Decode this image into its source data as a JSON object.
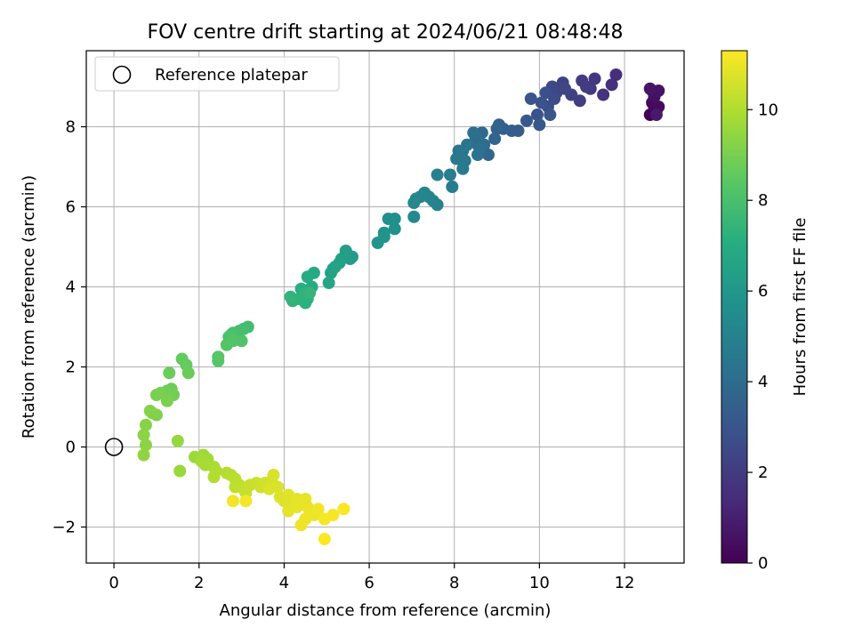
{
  "chart_data": {
    "type": "scatter",
    "title": "FOV centre drift starting at 2024/06/21 08:48:48",
    "xlabel": "Angular distance from reference (arcmin)",
    "ylabel": "Rotation from reference (arcmin)",
    "xlim": [
      -0.65,
      13.4
    ],
    "ylim": [
      -2.9,
      9.9
    ],
    "xticks": [
      0,
      2,
      4,
      6,
      8,
      10,
      12
    ],
    "yticks": [
      -2,
      0,
      2,
      4,
      6,
      8
    ],
    "xtick_labels": [
      "0",
      "2",
      "4",
      "6",
      "8",
      "10",
      "12"
    ],
    "ytick_labels": [
      "−2",
      "0",
      "2",
      "4",
      "6",
      "8"
    ],
    "grid": true,
    "legend": {
      "position": "upper-left",
      "entries": [
        {
          "label": "Reference platepar",
          "marker": "open-circle"
        }
      ]
    },
    "reference_point": {
      "x": 0,
      "y": 0
    },
    "colorbar": {
      "label": "Hours from first FF file",
      "colormap": "viridis",
      "range": [
        0,
        11.3
      ],
      "ticks": [
        0,
        2,
        4,
        6,
        8,
        10
      ],
      "tick_labels": [
        "0",
        "2",
        "4",
        "6",
        "8",
        "10"
      ]
    },
    "points": [
      {
        "x": 12.6,
        "y": 8.3,
        "h": 0.0
      },
      {
        "x": 12.75,
        "y": 8.4,
        "h": 0.1
      },
      {
        "x": 12.7,
        "y": 8.5,
        "h": 0.2
      },
      {
        "x": 12.65,
        "y": 8.6,
        "h": 0.3
      },
      {
        "x": 12.8,
        "y": 8.5,
        "h": 0.35
      },
      {
        "x": 12.7,
        "y": 8.75,
        "h": 0.45
      },
      {
        "x": 12.65,
        "y": 8.9,
        "h": 0.55
      },
      {
        "x": 12.8,
        "y": 8.9,
        "h": 0.6
      },
      {
        "x": 12.6,
        "y": 8.95,
        "h": 0.7
      },
      {
        "x": 12.75,
        "y": 8.3,
        "h": 0.8
      },
      {
        "x": 11.8,
        "y": 9.3,
        "h": 1.5
      },
      {
        "x": 11.7,
        "y": 9.05,
        "h": 1.6
      },
      {
        "x": 11.5,
        "y": 8.8,
        "h": 1.7
      },
      {
        "x": 11.3,
        "y": 9.2,
        "h": 1.8
      },
      {
        "x": 11.2,
        "y": 8.95,
        "h": 1.9
      },
      {
        "x": 11.0,
        "y": 9.15,
        "h": 2.0
      },
      {
        "x": 11.1,
        "y": 9.0,
        "h": 2.05
      },
      {
        "x": 10.95,
        "y": 8.65,
        "h": 2.1
      },
      {
        "x": 10.75,
        "y": 8.8,
        "h": 2.2
      },
      {
        "x": 10.55,
        "y": 9.1,
        "h": 2.3
      },
      {
        "x": 10.6,
        "y": 8.95,
        "h": 2.35
      },
      {
        "x": 10.4,
        "y": 8.85,
        "h": 2.45
      },
      {
        "x": 10.3,
        "y": 9.0,
        "h": 2.5
      },
      {
        "x": 10.35,
        "y": 8.7,
        "h": 2.6
      },
      {
        "x": 10.2,
        "y": 8.5,
        "h": 2.7
      },
      {
        "x": 10.15,
        "y": 8.85,
        "h": 2.75
      },
      {
        "x": 10.05,
        "y": 8.6,
        "h": 2.85
      },
      {
        "x": 9.95,
        "y": 8.3,
        "h": 2.95
      },
      {
        "x": 9.8,
        "y": 8.7,
        "h": 3.0
      },
      {
        "x": 10.25,
        "y": 8.3,
        "h": 3.05
      },
      {
        "x": 10.0,
        "y": 8.05,
        "h": 3.1
      },
      {
        "x": 9.7,
        "y": 8.15,
        "h": 3.2
      },
      {
        "x": 9.5,
        "y": 7.9,
        "h": 3.3
      },
      {
        "x": 9.35,
        "y": 7.9,
        "h": 3.35
      },
      {
        "x": 9.15,
        "y": 7.95,
        "h": 3.45
      },
      {
        "x": 9.05,
        "y": 8.05,
        "h": 3.5
      },
      {
        "x": 9.0,
        "y": 7.95,
        "h": 3.6
      },
      {
        "x": 8.95,
        "y": 7.7,
        "h": 3.7
      },
      {
        "x": 8.8,
        "y": 7.3,
        "h": 3.8
      },
      {
        "x": 8.65,
        "y": 7.85,
        "h": 3.9
      },
      {
        "x": 8.7,
        "y": 7.55,
        "h": 4.0
      },
      {
        "x": 8.55,
        "y": 7.55,
        "h": 4.05
      },
      {
        "x": 8.5,
        "y": 7.75,
        "h": 4.1
      },
      {
        "x": 8.45,
        "y": 7.85,
        "h": 4.2
      },
      {
        "x": 8.6,
        "y": 7.45,
        "h": 4.25
      },
      {
        "x": 8.55,
        "y": 7.3,
        "h": 4.3
      },
      {
        "x": 8.3,
        "y": 7.55,
        "h": 4.4
      },
      {
        "x": 8.2,
        "y": 7.4,
        "h": 4.45
      },
      {
        "x": 8.1,
        "y": 7.4,
        "h": 4.5
      },
      {
        "x": 8.05,
        "y": 7.2,
        "h": 4.55
      },
      {
        "x": 8.25,
        "y": 7.15,
        "h": 4.6
      },
      {
        "x": 8.2,
        "y": 6.95,
        "h": 4.65
      },
      {
        "x": 7.95,
        "y": 6.5,
        "h": 4.7
      },
      {
        "x": 7.9,
        "y": 6.8,
        "h": 4.8
      },
      {
        "x": 7.6,
        "y": 6.8,
        "h": 4.9
      },
      {
        "x": 7.6,
        "y": 6.05,
        "h": 5.0
      },
      {
        "x": 7.5,
        "y": 6.15,
        "h": 5.05
      },
      {
        "x": 7.4,
        "y": 6.25,
        "h": 5.1
      },
      {
        "x": 7.3,
        "y": 6.35,
        "h": 5.15
      },
      {
        "x": 7.2,
        "y": 6.25,
        "h": 5.2
      },
      {
        "x": 7.1,
        "y": 6.2,
        "h": 5.25
      },
      {
        "x": 7.05,
        "y": 6.1,
        "h": 5.3
      },
      {
        "x": 7.05,
        "y": 5.75,
        "h": 5.35
      },
      {
        "x": 6.6,
        "y": 5.7,
        "h": 5.6
      },
      {
        "x": 6.45,
        "y": 5.7,
        "h": 5.65
      },
      {
        "x": 6.6,
        "y": 5.45,
        "h": 5.7
      },
      {
        "x": 6.35,
        "y": 5.35,
        "h": 5.8
      },
      {
        "x": 6.35,
        "y": 5.25,
        "h": 5.85
      },
      {
        "x": 6.2,
        "y": 5.1,
        "h": 5.9
      },
      {
        "x": 5.6,
        "y": 4.75,
        "h": 6.2
      },
      {
        "x": 5.55,
        "y": 4.7,
        "h": 6.25
      },
      {
        "x": 5.5,
        "y": 4.8,
        "h": 6.3
      },
      {
        "x": 5.45,
        "y": 4.9,
        "h": 6.35
      },
      {
        "x": 5.35,
        "y": 4.7,
        "h": 6.4
      },
      {
        "x": 5.3,
        "y": 4.6,
        "h": 6.45
      },
      {
        "x": 5.2,
        "y": 4.5,
        "h": 6.5
      },
      {
        "x": 5.1,
        "y": 4.35,
        "h": 6.55
      },
      {
        "x": 5.15,
        "y": 4.45,
        "h": 6.6
      },
      {
        "x": 5.05,
        "y": 4.1,
        "h": 6.65
      },
      {
        "x": 4.7,
        "y": 4.35,
        "h": 6.9
      },
      {
        "x": 4.55,
        "y": 4.25,
        "h": 6.95
      },
      {
        "x": 4.65,
        "y": 4.0,
        "h": 7.0
      },
      {
        "x": 4.5,
        "y": 3.9,
        "h": 7.05
      },
      {
        "x": 4.4,
        "y": 3.95,
        "h": 7.1
      },
      {
        "x": 4.55,
        "y": 3.7,
        "h": 7.15
      },
      {
        "x": 4.5,
        "y": 3.6,
        "h": 7.2
      },
      {
        "x": 4.35,
        "y": 3.7,
        "h": 7.25
      },
      {
        "x": 4.45,
        "y": 3.8,
        "h": 7.3
      },
      {
        "x": 4.2,
        "y": 3.65,
        "h": 7.35
      },
      {
        "x": 4.15,
        "y": 3.75,
        "h": 7.4
      },
      {
        "x": 4.6,
        "y": 3.85,
        "h": 7.45
      },
      {
        "x": 3.15,
        "y": 3.0,
        "h": 7.8
      },
      {
        "x": 3.05,
        "y": 2.95,
        "h": 7.85
      },
      {
        "x": 2.95,
        "y": 2.9,
        "h": 7.9
      },
      {
        "x": 2.9,
        "y": 2.8,
        "h": 7.95
      },
      {
        "x": 2.8,
        "y": 2.85,
        "h": 8.0
      },
      {
        "x": 2.75,
        "y": 2.8,
        "h": 8.05
      },
      {
        "x": 2.7,
        "y": 2.75,
        "h": 8.1
      },
      {
        "x": 3.0,
        "y": 2.65,
        "h": 8.15
      },
      {
        "x": 2.8,
        "y": 2.65,
        "h": 8.2
      },
      {
        "x": 2.65,
        "y": 2.55,
        "h": 8.25
      },
      {
        "x": 2.45,
        "y": 2.25,
        "h": 8.3
      },
      {
        "x": 2.45,
        "y": 2.15,
        "h": 8.35
      },
      {
        "x": 1.6,
        "y": 2.2,
        "h": 8.6
      },
      {
        "x": 1.7,
        "y": 2.05,
        "h": 8.65
      },
      {
        "x": 1.75,
        "y": 1.85,
        "h": 8.7
      },
      {
        "x": 1.3,
        "y": 1.85,
        "h": 8.75
      },
      {
        "x": 1.35,
        "y": 1.45,
        "h": 8.8
      },
      {
        "x": 1.25,
        "y": 1.4,
        "h": 8.85
      },
      {
        "x": 1.4,
        "y": 1.3,
        "h": 8.9
      },
      {
        "x": 1.1,
        "y": 1.35,
        "h": 8.95
      },
      {
        "x": 1.0,
        "y": 1.3,
        "h": 9.0
      },
      {
        "x": 1.25,
        "y": 1.15,
        "h": 9.05
      },
      {
        "x": 1.0,
        "y": 0.8,
        "h": 9.1
      },
      {
        "x": 0.9,
        "y": 0.85,
        "h": 9.15
      },
      {
        "x": 0.85,
        "y": 0.9,
        "h": 9.2
      },
      {
        "x": 0.75,
        "y": 0.55,
        "h": 9.25
      },
      {
        "x": 0.7,
        "y": 0.3,
        "h": 9.3
      },
      {
        "x": 0.75,
        "y": 0.05,
        "h": 9.35
      },
      {
        "x": 0.7,
        "y": -0.2,
        "h": 9.4
      },
      {
        "x": 1.5,
        "y": 0.15,
        "h": 9.55
      },
      {
        "x": 1.55,
        "y": -0.6,
        "h": 9.6
      },
      {
        "x": 1.9,
        "y": -0.25,
        "h": 9.65
      },
      {
        "x": 2.1,
        "y": -0.2,
        "h": 9.7
      },
      {
        "x": 2.2,
        "y": -0.3,
        "h": 9.75
      },
      {
        "x": 2.05,
        "y": -0.35,
        "h": 9.8
      },
      {
        "x": 2.15,
        "y": -0.45,
        "h": 9.85
      },
      {
        "x": 2.35,
        "y": -0.5,
        "h": 9.9
      },
      {
        "x": 2.4,
        "y": -0.6,
        "h": 9.95
      },
      {
        "x": 2.35,
        "y": -0.75,
        "h": 10.0
      },
      {
        "x": 2.65,
        "y": -0.65,
        "h": 10.05
      },
      {
        "x": 2.75,
        "y": -0.7,
        "h": 10.1
      },
      {
        "x": 2.85,
        "y": -0.8,
        "h": 10.15
      },
      {
        "x": 2.95,
        "y": -0.95,
        "h": 10.2
      },
      {
        "x": 2.85,
        "y": -1.0,
        "h": 10.25
      },
      {
        "x": 3.05,
        "y": -1.05,
        "h": 10.3
      },
      {
        "x": 3.1,
        "y": -1.15,
        "h": 10.35
      },
      {
        "x": 3.2,
        "y": -0.95,
        "h": 10.4
      },
      {
        "x": 3.35,
        "y": -0.9,
        "h": 10.45
      },
      {
        "x": 3.45,
        "y": -1.0,
        "h": 10.5
      },
      {
        "x": 3.55,
        "y": -0.9,
        "h": 10.55
      },
      {
        "x": 3.7,
        "y": -0.85,
        "h": 10.6
      },
      {
        "x": 3.75,
        "y": -0.7,
        "h": 10.65
      },
      {
        "x": 3.85,
        "y": -1.0,
        "h": 10.7
      },
      {
        "x": 3.65,
        "y": -1.05,
        "h": 10.72
      },
      {
        "x": 3.9,
        "y": -1.25,
        "h": 10.75
      },
      {
        "x": 4.0,
        "y": -1.35,
        "h": 10.78
      },
      {
        "x": 4.1,
        "y": -1.2,
        "h": 10.8
      },
      {
        "x": 4.2,
        "y": -1.45,
        "h": 10.83
      },
      {
        "x": 4.1,
        "y": -1.6,
        "h": 10.85
      },
      {
        "x": 4.3,
        "y": -1.5,
        "h": 10.88
      },
      {
        "x": 4.3,
        "y": -1.3,
        "h": 10.9
      },
      {
        "x": 4.4,
        "y": -1.4,
        "h": 10.92
      },
      {
        "x": 4.5,
        "y": -1.3,
        "h": 10.95
      },
      {
        "x": 4.55,
        "y": -1.5,
        "h": 10.97
      },
      {
        "x": 4.6,
        "y": -1.6,
        "h": 11.0
      },
      {
        "x": 4.7,
        "y": -1.7,
        "h": 11.02
      },
      {
        "x": 4.5,
        "y": -1.8,
        "h": 11.05
      },
      {
        "x": 4.4,
        "y": -1.95,
        "h": 11.07
      },
      {
        "x": 4.8,
        "y": -1.55,
        "h": 11.1
      },
      {
        "x": 2.8,
        "y": -1.35,
        "h": 11.12
      },
      {
        "x": 3.1,
        "y": -1.35,
        "h": 11.14
      },
      {
        "x": 4.95,
        "y": -1.8,
        "h": 11.16
      },
      {
        "x": 5.15,
        "y": -1.7,
        "h": 11.2
      },
      {
        "x": 5.4,
        "y": -1.55,
        "h": 11.24
      },
      {
        "x": 4.95,
        "y": -2.3,
        "h": 11.28
      }
    ]
  }
}
